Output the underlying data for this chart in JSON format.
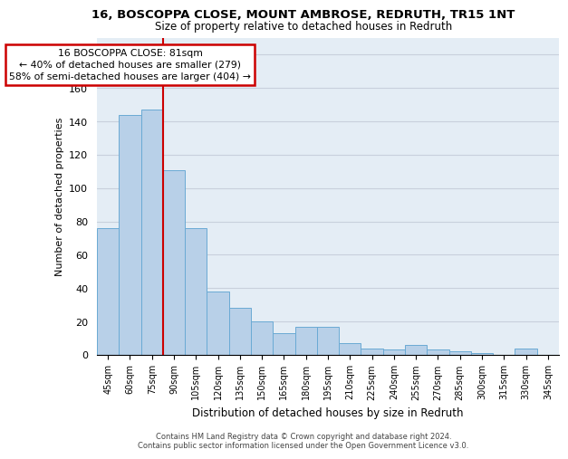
{
  "title": "16, BOSCOPPA CLOSE, MOUNT AMBROSE, REDRUTH, TR15 1NT",
  "subtitle": "Size of property relative to detached houses in Redruth",
  "xlabel": "Distribution of detached houses by size in Redruth",
  "ylabel": "Number of detached properties",
  "categories": [
    "45sqm",
    "60sqm",
    "75sqm",
    "90sqm",
    "105sqm",
    "120sqm",
    "135sqm",
    "150sqm",
    "165sqm",
    "180sqm",
    "195sqm",
    "210sqm",
    "225sqm",
    "240sqm",
    "255sqm",
    "270sqm",
    "285sqm",
    "300sqm",
    "315sqm",
    "330sqm",
    "345sqm"
  ],
  "values": [
    76,
    144,
    147,
    111,
    76,
    38,
    28,
    20,
    13,
    17,
    17,
    7,
    4,
    3,
    6,
    3,
    2,
    1,
    0,
    4,
    0
  ],
  "bar_color": "#b8d0e8",
  "bar_edge_color": "#6aaad4",
  "grid_color": "#c8d0dc",
  "bg_color": "#e4edf5",
  "red_line_x": 2.5,
  "annotation_text": "16 BOSCOPPA CLOSE: 81sqm\n← 40% of detached houses are smaller (279)\n58% of semi-detached houses are larger (404) →",
  "annotation_box_color": "#ffffff",
  "annotation_border_color": "#cc0000",
  "footer": "Contains HM Land Registry data © Crown copyright and database right 2024.\nContains public sector information licensed under the Open Government Licence v3.0.",
  "ylim": [
    0,
    190
  ],
  "yticks": [
    0,
    20,
    40,
    60,
    80,
    100,
    120,
    140,
    160,
    180
  ]
}
